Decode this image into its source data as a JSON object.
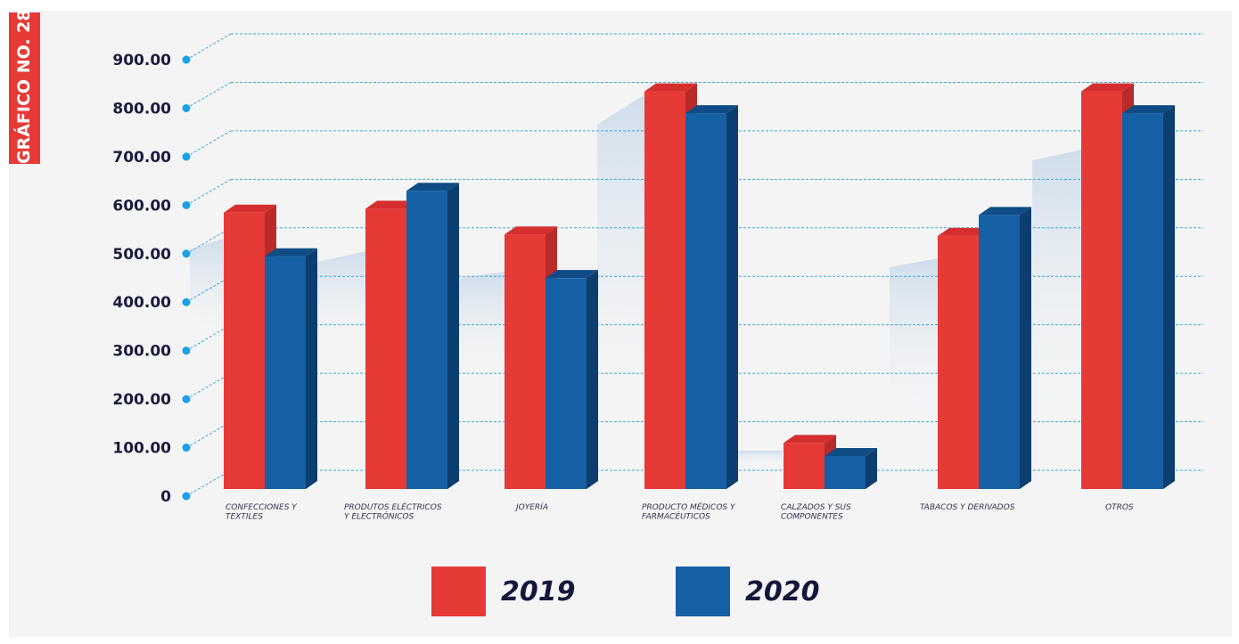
{
  "badge": {
    "text": "GRÁFICO NO. 28"
  },
  "colors": {
    "y2019": "#e63a37",
    "y2019_side": "#b92b29",
    "y2019_top": "#d52f2d",
    "y2020": "#1660a5",
    "y2020_side": "#0c3e6f",
    "y2020_top": "#0f4c85",
    "grid": "#3aa9e0",
    "tickdot": "#19a0e6"
  },
  "chart_data": {
    "type": "bar",
    "title": "",
    "xlabel": "",
    "ylabel": "",
    "ylim": [
      0,
      900
    ],
    "yticks": [
      "0",
      "100.00",
      "200.00",
      "300.00",
      "400.00",
      "500.00",
      "600.00",
      "700.00",
      "800.00",
      "900.00"
    ],
    "grid": true,
    "legend_position": "bottom",
    "categories": [
      [
        "CONFECCIONES Y",
        "TEXTILES"
      ],
      [
        "PRODUTOS ELÉCTRICOS",
        "Y ELECTRÓNICOS"
      ],
      [
        "JOYERÍA"
      ],
      [
        "PRODUCTO MÉDICOS Y",
        "FARMACÉUTICOS"
      ],
      [
        "CALZADOS Y SUS",
        "COMPONENTES"
      ],
      [
        "TABACOS Y DERIVADOS"
      ],
      [
        "OTROS"
      ]
    ],
    "series": [
      {
        "name": "2019",
        "values": [
          570,
          578,
          525,
          820,
          95,
          522,
          820
        ]
      },
      {
        "name": "2020",
        "values": [
          480,
          615,
          435,
          775,
          68,
          565,
          775
        ]
      }
    ]
  }
}
